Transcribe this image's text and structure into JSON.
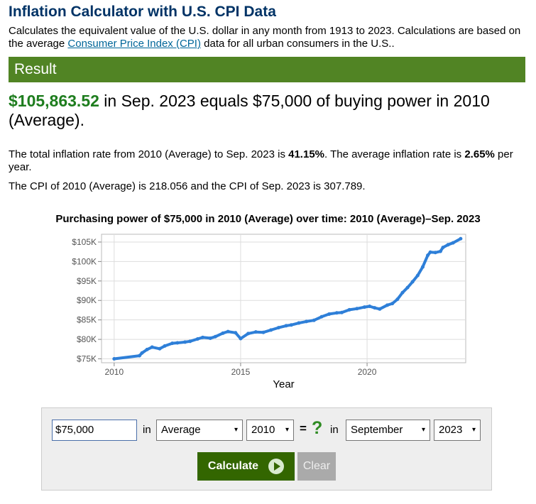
{
  "title": "Inflation Calculator with U.S. CPI Data",
  "intro": {
    "text_before": "Calculates the equivalent value of the U.S. dollar in any month from 1913 to 2023. Calculations are based on the average ",
    "link": "Consumer Price Index (CPI)",
    "text_after": " data for all urban consumers in the U.S.."
  },
  "result": {
    "header": "Result",
    "amount": "$105,863.52",
    "headline_rest": " in Sep. 2023 equals $75,000 of buying power in 2010 (Average).",
    "p1_a": "The total inflation rate from 2010 (Average) to Sep. 2023 is ",
    "p1_rate": "41.15%",
    "p1_b": ". The average inflation rate is ",
    "p1_avg": "2.65%",
    "p1_c": " per year.",
    "p2": "The CPI of 2010 (Average) is 218.056 and the CPI of Sep. 2023 is 307.789."
  },
  "chart_data": {
    "type": "line",
    "title": "Purchasing power of $75,000 in 2010 (Average) over time: 2010 (Average)–Sep. 2023",
    "xlabel": "Year",
    "ylabel": "",
    "xlim": [
      2009.5,
      2023.9
    ],
    "ylim": [
      74000,
      107000
    ],
    "x_ticks": [
      2010,
      2015,
      2020
    ],
    "y_ticks": [
      {
        "value": 75000,
        "label": "$75K"
      },
      {
        "value": 80000,
        "label": "$80K"
      },
      {
        "value": 85000,
        "label": "$85K"
      },
      {
        "value": 90000,
        "label": "$90K"
      },
      {
        "value": 95000,
        "label": "$95K"
      },
      {
        "value": 100000,
        "label": "$100K"
      },
      {
        "value": 105000,
        "label": "$105K"
      }
    ],
    "grid": true,
    "line_color": "#2e7fd8",
    "series": [
      {
        "x": [
          2010.0,
          2011.0,
          2011.1,
          2011.3,
          2011.5,
          2011.8,
          2012.0,
          2012.3,
          2012.5,
          2012.8,
          2013.0,
          2013.3,
          2013.5,
          2013.8,
          2014.0,
          2014.3,
          2014.5,
          2014.8,
          2015.0,
          2015.3,
          2015.6,
          2015.9,
          2016.2,
          2016.5,
          2016.8,
          2017.0,
          2017.3,
          2017.6,
          2017.9,
          2018.2,
          2018.5,
          2018.8,
          2019.0,
          2019.3,
          2019.6,
          2019.9,
          2020.1,
          2020.3,
          2020.5,
          2020.8,
          2021.0,
          2021.2,
          2021.4,
          2021.6,
          2021.8,
          2022.0,
          2022.2,
          2022.4,
          2022.5,
          2022.7,
          2022.9,
          2023.0,
          2023.2,
          2023.4,
          2023.7
        ],
        "y": [
          75000,
          75800,
          76500,
          77400,
          78000,
          77600,
          78300,
          79000,
          79100,
          79300,
          79500,
          80100,
          80500,
          80300,
          80700,
          81600,
          82000,
          81700,
          80200,
          81500,
          81900,
          81800,
          82400,
          83000,
          83500,
          83700,
          84200,
          84600,
          84900,
          85800,
          86500,
          86800,
          86900,
          87600,
          87900,
          88300,
          88500,
          88100,
          87800,
          88800,
          89200,
          90300,
          92000,
          93300,
          94800,
          96400,
          98600,
          101600,
          102400,
          102300,
          102600,
          103600,
          104300,
          104800,
          105864
        ]
      }
    ]
  },
  "form": {
    "amount": "$75,000",
    "in1": "in",
    "period1": "Average",
    "year1": "2010",
    "equals": "=",
    "question": "?",
    "in2": "in",
    "month2": "September",
    "year2": "2023",
    "calculate": "Calculate",
    "clear": "Clear"
  }
}
